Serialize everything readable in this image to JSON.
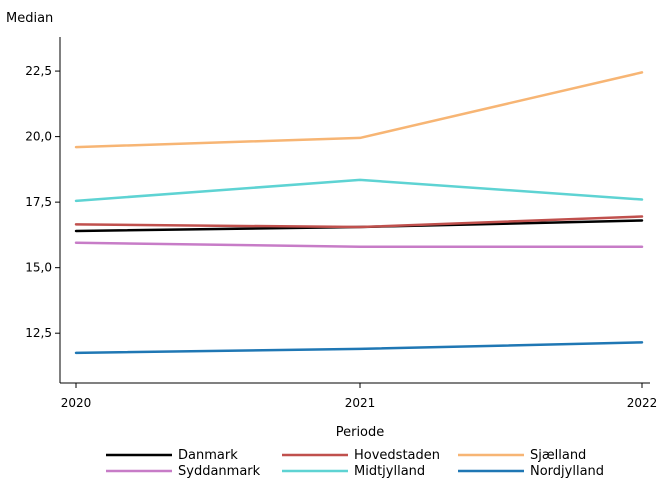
{
  "chart_data": {
    "type": "line",
    "title": "",
    "xlabel": "Periode",
    "ylabel": "Median",
    "x": [
      "2020",
      "2021",
      "2022"
    ],
    "ylim": [
      10.6,
      23.8
    ],
    "yticks": [
      "12,5",
      "15,0",
      "17,5",
      "20,0",
      "22,5"
    ],
    "ytick_values": [
      12.5,
      15.0,
      17.5,
      20.0,
      22.5
    ],
    "grid": false,
    "legend_placement": "bottom",
    "series": [
      {
        "name": "Danmark",
        "color": "#000000",
        "values": [
          16.4,
          16.55,
          16.8
        ]
      },
      {
        "name": "Hovedstaden",
        "color": "#c0504d",
        "values": [
          16.65,
          16.55,
          16.95
        ]
      },
      {
        "name": "Sjælland",
        "color": "#f7b574",
        "values": [
          19.6,
          19.95,
          22.45
        ]
      },
      {
        "name": "Syddanmark",
        "color": "#c77cc7",
        "values": [
          15.95,
          15.8,
          15.8
        ]
      },
      {
        "name": "Midtjylland",
        "color": "#5ed3d3",
        "values": [
          17.55,
          18.35,
          17.6
        ]
      },
      {
        "name": "Nordjylland",
        "color": "#1f77b4",
        "values": [
          11.75,
          11.9,
          12.15
        ]
      }
    ]
  }
}
